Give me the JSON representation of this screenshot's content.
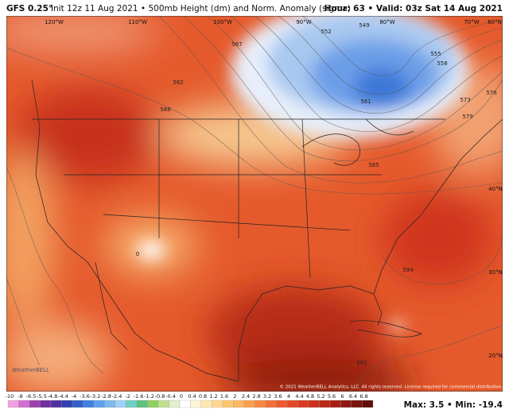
{
  "header": {
    "model": "GFS 0.25°",
    "run": "Init 12z 11 Aug 2021 • 500mb Height (dm) and Norm. Anomaly (sigma)",
    "valid": "Hour: 63 • Valid: 03z Sat 14 Aug 2021"
  },
  "longitude_labels": [
    "120°W",
    "110°W",
    "100°W",
    "90°W",
    "80°W",
    "70°W"
  ],
  "latitude_labels": [
    "60°N",
    "40°N",
    "30°N",
    "20°N"
  ],
  "contour_labels": [
    "549",
    "552",
    "555",
    "558",
    "561",
    "567",
    "573",
    "576",
    "579",
    "582",
    "585",
    "588",
    "591",
    "594",
    "0"
  ],
  "colorbar": {
    "labels": [
      -10,
      -8,
      -6.5,
      -5.5,
      -4.8,
      -4.4,
      -4,
      -3.6,
      -3.2,
      -2.8,
      -2.4,
      -2,
      -1.6,
      -1.2,
      -0.8,
      -0.4,
      0,
      0.4,
      0.8,
      1.2,
      1.6,
      2,
      2.4,
      2.8,
      3.2,
      3.6,
      4,
      4.4,
      4.8,
      5.2,
      5.6,
      6,
      6.4,
      6.8
    ],
    "colors": [
      "#f0a0e0",
      "#d070d0",
      "#a040b0",
      "#7030a0",
      "#5030a0",
      "#3040b0",
      "#3060c8",
      "#4080e0",
      "#60a0f0",
      "#80b8f0",
      "#a0d0f8",
      "#70d0c0",
      "#60c080",
      "#90d060",
      "#c0e090",
      "#e0f0d0",
      "#ffffff",
      "#fff5d8",
      "#ffe8b0",
      "#ffd890",
      "#ffc870",
      "#ffb860",
      "#fca050",
      "#f88840",
      "#f47038",
      "#ee5a2e",
      "#e44a26",
      "#d83c20",
      "#cc301a",
      "#bc2616",
      "#a81e12",
      "#901810",
      "#78140c",
      "#601008"
    ]
  },
  "logo": "WeatherBELL",
  "copyright": "© 2021 WeatherBELL Analytics, LLC. All rights reserved. License required for commercial distribution.",
  "stats": "Max: 3.5 • Min: -19.4"
}
